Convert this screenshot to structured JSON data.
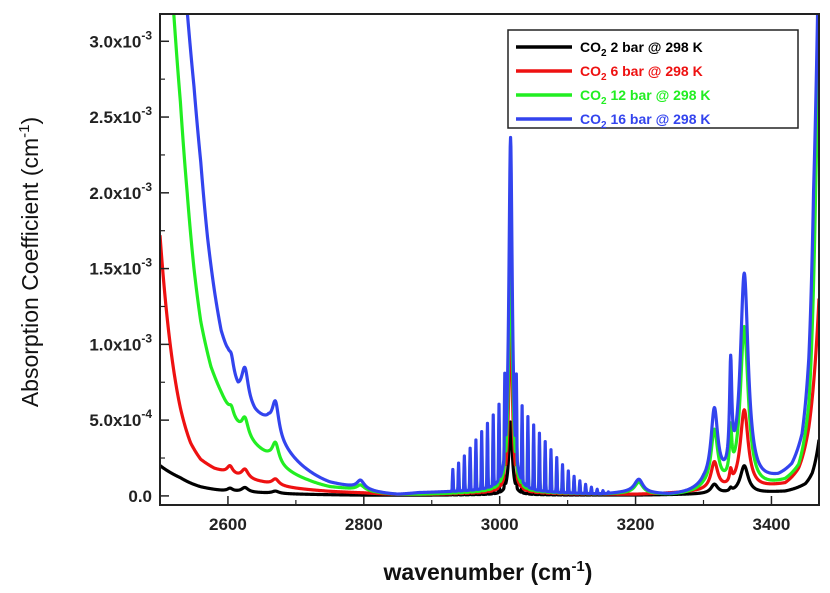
{
  "chart_data": {
    "type": "line",
    "title": "",
    "xlabel": "wavenumber (cm",
    "xlabel_sup": "-1",
    "xlabel_end": ")",
    "ylabel": "Absorption Coefficient (cm",
    "ylabel_sup": "-1",
    "ylabel_end": ")",
    "xlim": [
      2500,
      3470
    ],
    "ylim": [
      -6e-05,
      0.00318
    ],
    "xticks": [
      {
        "value": 2600,
        "label": "2600"
      },
      {
        "value": 2800,
        "label": "2800"
      },
      {
        "value": 3000,
        "label": "3000"
      },
      {
        "value": 3200,
        "label": "3200"
      },
      {
        "value": 3400,
        "label": "3400"
      }
    ],
    "yticks": [
      {
        "value": 0,
        "label": "0.0",
        "exp": ""
      },
      {
        "value": 0.0005,
        "label": "5.0x10",
        "exp": "-4"
      },
      {
        "value": 0.001,
        "label": "1.0x10",
        "exp": "-3"
      },
      {
        "value": 0.0015,
        "label": "1.5x10",
        "exp": "-3"
      },
      {
        "value": 0.002,
        "label": "2.0x10",
        "exp": "-3"
      },
      {
        "value": 0.0025,
        "label": "2.5x10",
        "exp": "-3"
      },
      {
        "value": 0.003,
        "label": "3.0x10",
        "exp": "-3"
      }
    ],
    "legend_position": "top-right",
    "series": [
      {
        "name": "CO2 2 bar @ 298 K",
        "label_pre": "CO",
        "label_sub": "2",
        "label_post": " 2 bar @ 298 K",
        "color": "#000000",
        "base": [
          [
            2500,
            0.0002
          ],
          [
            2530,
            0.00012
          ],
          [
            2560,
            6e-05
          ],
          [
            2600,
            3e-05
          ],
          [
            2650,
            2e-05
          ],
          [
            2700,
            1.2e-05
          ],
          [
            2800,
            5e-06
          ],
          [
            2900,
            5e-06
          ],
          [
            3000,
            8e-06
          ],
          [
            3100,
            5e-06
          ],
          [
            3200,
            5e-06
          ],
          [
            3300,
            1.2e-05
          ],
          [
            3380,
            2e-05
          ],
          [
            3420,
            3e-05
          ],
          [
            3450,
            8e-05
          ],
          [
            3460,
            0.00015
          ],
          [
            3470,
            0.00037
          ]
        ],
        "peaks": [
          [
            3016,
            0.00048,
            3.0
          ],
          [
            2625,
            3e-05,
            6
          ],
          [
            2603,
            2e-05,
            5
          ],
          [
            2670,
            1.5e-05,
            6
          ],
          [
            3316,
            6e-05,
            6
          ],
          [
            3360,
            0.00018,
            7
          ],
          [
            3340,
            2e-05,
            2
          ]
        ],
        "ripple": {
          "from": 2925,
          "to": 3160,
          "amp": 7e-05,
          "center": 3016,
          "spread": 75,
          "spacing": 8.5
        }
      },
      {
        "name": "CO2 6 bar @ 298 K",
        "label_pre": "CO",
        "label_sub": "2",
        "label_post": " 6 bar @ 298 K",
        "color": "#ee1111",
        "base": [
          [
            2500,
            0.00172
          ],
          [
            2515,
            0.001
          ],
          [
            2530,
            0.00058
          ],
          [
            2545,
            0.00035
          ],
          [
            2560,
            0.00024
          ],
          [
            2580,
            0.00018
          ],
          [
            2600,
            0.00015
          ],
          [
            2620,
            0.00012
          ],
          [
            2650,
            9e-05
          ],
          [
            2700,
            5e-05
          ],
          [
            2750,
            3e-05
          ],
          [
            2800,
            2e-05
          ],
          [
            2850,
            1e-05
          ],
          [
            2900,
            1e-05
          ],
          [
            3000,
            2e-05
          ],
          [
            3100,
            1.2e-05
          ],
          [
            3200,
            1e-05
          ],
          [
            3300,
            3e-05
          ],
          [
            3380,
            5e-05
          ],
          [
            3420,
            8e-05
          ],
          [
            3440,
            0.00018
          ],
          [
            3455,
            0.00045
          ],
          [
            3470,
            0.0013
          ]
        ],
        "peaks": [
          [
            3016,
            0.0012,
            3.0
          ],
          [
            2625,
            6e-05,
            6
          ],
          [
            2603,
            5e-05,
            5
          ],
          [
            2670,
            4e-05,
            6
          ],
          [
            3316,
            0.00018,
            6
          ],
          [
            3360,
            0.00052,
            7
          ],
          [
            3340,
            8e-05,
            2
          ]
        ],
        "ripple": {
          "from": 2925,
          "to": 3160,
          "amp": 0.00022,
          "center": 3016,
          "spread": 75,
          "spacing": 8.5
        }
      },
      {
        "name": "CO2 12 bar @ 298 K",
        "label_pre": "CO",
        "label_sub": "2",
        "label_post": " 12 bar @ 298 K",
        "color": "#22ee22",
        "base": [
          [
            2520,
            0.0032
          ],
          [
            2530,
            0.0026
          ],
          [
            2540,
            0.002
          ],
          [
            2550,
            0.0015
          ],
          [
            2560,
            0.00115
          ],
          [
            2575,
            0.00085
          ],
          [
            2590,
            0.00068
          ],
          [
            2600,
            0.00058
          ],
          [
            2620,
            0.00042
          ],
          [
            2640,
            0.00033
          ],
          [
            2660,
            0.00026
          ],
          [
            2690,
            0.00016
          ],
          [
            2720,
            0.0001
          ],
          [
            2750,
            6e-05
          ],
          [
            2800,
            4e-05
          ],
          [
            2850,
            1e-05
          ],
          [
            2880,
            1e-05
          ],
          [
            3000,
            3e-05
          ],
          [
            3150,
            1e-05
          ],
          [
            3200,
            2e-05
          ],
          [
            3250,
            5e-06
          ],
          [
            3300,
            4e-05
          ],
          [
            3380,
            5e-05
          ],
          [
            3420,
            0.0001
          ],
          [
            3440,
            0.0002
          ],
          [
            3455,
            0.0006
          ],
          [
            3465,
            0.002
          ],
          [
            3470,
            0.0032
          ]
        ],
        "peaks": [
          [
            3016,
            0.0017,
            3.0
          ],
          [
            2625,
            0.00012,
            6
          ],
          [
            2605,
            5e-05,
            4
          ],
          [
            2670,
            0.00013,
            6
          ],
          [
            2795,
            3e-05,
            6
          ],
          [
            3316,
            0.00037,
            6
          ],
          [
            3360,
            0.00106,
            7
          ],
          [
            3340,
            0.0003,
            2
          ],
          [
            3205,
            7e-05,
            7
          ]
        ],
        "ripple": {
          "from": 2925,
          "to": 3160,
          "amp": 0.00042,
          "center": 3016,
          "spread": 75,
          "spacing": 8.5
        }
      },
      {
        "name": "CO2 16 bar @ 298 K",
        "label_pre": "CO",
        "label_sub": "2",
        "label_post": " 16 bar @ 298 K",
        "color": "#3344ee",
        "base": [
          [
            2540,
            0.0032
          ],
          [
            2550,
            0.0027
          ],
          [
            2560,
            0.0022
          ],
          [
            2570,
            0.0017
          ],
          [
            2580,
            0.00135
          ],
          [
            2590,
            0.00108
          ],
          [
            2600,
            0.00093
          ],
          [
            2615,
            0.00068
          ],
          [
            2640,
            0.00054
          ],
          [
            2660,
            0.00048
          ],
          [
            2690,
            0.00028
          ],
          [
            2720,
            0.00016
          ],
          [
            2750,
            9e-05
          ],
          [
            2800,
            5e-05
          ],
          [
            2850,
            1e-05
          ],
          [
            2880,
            2e-05
          ],
          [
            3000,
            4e-05
          ],
          [
            3150,
            1e-05
          ],
          [
            3200,
            3e-05
          ],
          [
            3250,
            5e-06
          ],
          [
            3300,
            6e-05
          ],
          [
            3380,
            8e-05
          ],
          [
            3410,
            0.00012
          ],
          [
            3430,
            0.0002
          ],
          [
            3445,
            0.0004
          ],
          [
            3455,
            0.0009
          ],
          [
            3462,
            0.002
          ],
          [
            3468,
            0.0032
          ]
        ],
        "peaks": [
          [
            3016,
            0.00233,
            3.0
          ],
          [
            2625,
            0.00022,
            6
          ],
          [
            2605,
            8e-05,
            4
          ],
          [
            2670,
            0.00022,
            6
          ],
          [
            2795,
            5e-05,
            6
          ],
          [
            3316,
            0.00048,
            6
          ],
          [
            3360,
            0.00138,
            7
          ],
          [
            3340,
            0.00068,
            2
          ],
          [
            3205,
            8e-05,
            7
          ]
        ],
        "ripple": {
          "from": 2925,
          "to": 3160,
          "amp": 0.00052,
          "center": 3016,
          "spread": 75,
          "spacing": 8.5
        }
      }
    ]
  }
}
